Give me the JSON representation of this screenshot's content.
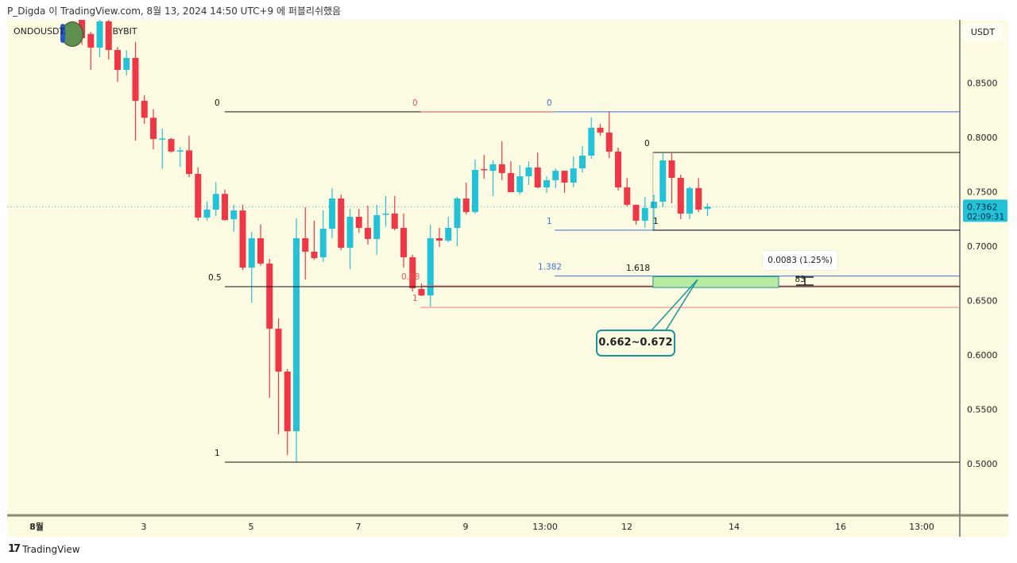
{
  "header": {
    "published_text": "P_Digda 이 TradingView.com, 8월 13, 2024 14:50 UTC+9 에 퍼블리쉬했음"
  },
  "symbol": {
    "label": "ONDOUSDT.P, 4h, BYBIT",
    "visible_text_left": "ONDOUSDT.",
    "visible_text_right": "BYBIT"
  },
  "price_axis": {
    "currency": "USDT",
    "current_price": "0.7362",
    "countdown": "02:09:31",
    "current_price_color": "#22c3d9"
  },
  "footer": {
    "brand": "TradingView",
    "logo_glyph": "17"
  },
  "colors": {
    "up": "#22c3d9",
    "down": "#f23645",
    "background": "#fdfbe2",
    "fib_black": "#131313",
    "fib_blue": "#3f6fd8",
    "fib_red": "#f08080",
    "zone_fill": "#b8eaa0",
    "callout_border": "#17979b"
  },
  "annotations": {
    "measure_label": "0.0083 (1.25%) 83",
    "zone_callout": "0.662~0.672",
    "zone_low": 0.662,
    "zone_high": 0.672
  },
  "chart_data": {
    "type": "candlestick",
    "timeframe": "4h",
    "ylim": [
      0.4533,
      0.908
    ],
    "y_ticks": [
      "0.8500",
      "0.8000",
      "0.7500",
      "0.7000",
      "0.6500",
      "0.6000",
      "0.5500",
      "0.5000"
    ],
    "y_tick_values": [
      0.85,
      0.8,
      0.75,
      0.7,
      0.65,
      0.6,
      0.55,
      0.5
    ],
    "x_ticks": [
      "8월",
      "3",
      "5",
      "7",
      "9",
      "13:00",
      "12",
      "14",
      "16",
      "13:00"
    ],
    "grid": false,
    "ohlc": [
      [
        0.915,
        0.92,
        0.885,
        0.891
      ],
      [
        0.895,
        0.897,
        0.862,
        0.8825
      ],
      [
        0.8825,
        0.912,
        0.8737,
        0.9066
      ],
      [
        0.9066,
        0.91,
        0.8715,
        0.8803
      ],
      [
        0.8803,
        0.883,
        0.851,
        0.862
      ],
      [
        0.862,
        0.88,
        0.857,
        0.873
      ],
      [
        0.873,
        0.8876,
        0.797,
        0.8336
      ],
      [
        0.8336,
        0.8387,
        0.8124,
        0.818
      ],
      [
        0.818,
        0.826,
        0.789,
        0.7985
      ],
      [
        0.7985,
        0.808,
        0.771,
        0.799
      ],
      [
        0.7985,
        0.7995,
        0.786,
        0.787
      ],
      [
        0.7876,
        0.791,
        0.773,
        0.788
      ],
      [
        0.788,
        0.8015,
        0.7635,
        0.7664
      ],
      [
        0.7664,
        0.7723,
        0.7234,
        0.7263
      ],
      [
        0.7263,
        0.741,
        0.7234,
        0.7336
      ],
      [
        0.7336,
        0.759,
        0.7277,
        0.748
      ],
      [
        0.748,
        0.752,
        0.7234,
        0.724
      ],
      [
        0.7248,
        0.738,
        0.713,
        0.7328
      ],
      [
        0.7328,
        0.738,
        0.678,
        0.6803
      ],
      [
        0.6803,
        0.713,
        0.648,
        0.7073
      ],
      [
        0.7073,
        0.72,
        0.682,
        0.684
      ],
      [
        0.684,
        0.6883,
        0.5606,
        0.6241
      ],
      [
        0.6241,
        0.6336,
        0.527,
        0.5847
      ],
      [
        0.5847,
        0.587,
        0.508,
        0.5299
      ],
      [
        0.5299,
        0.7255,
        0.5015,
        0.7073
      ],
      [
        0.7073,
        0.7358,
        0.6693,
        0.6949
      ],
      [
        0.6949,
        0.7234,
        0.6876,
        0.689
      ],
      [
        0.6898,
        0.7328,
        0.6854,
        0.716
      ],
      [
        0.716,
        0.7533,
        0.7073,
        0.7438
      ],
      [
        0.7438,
        0.7474,
        0.6963,
        0.6985
      ],
      [
        0.6985,
        0.7343,
        0.6788,
        0.727
      ],
      [
        0.727,
        0.7343,
        0.7124,
        0.7168
      ],
      [
        0.7168,
        0.7372,
        0.7015,
        0.7066
      ],
      [
        0.7066,
        0.738,
        0.692,
        0.7285
      ],
      [
        0.7292,
        0.746,
        0.718,
        0.7299
      ],
      [
        0.73,
        0.746,
        0.7146,
        0.716
      ],
      [
        0.7168,
        0.73,
        0.6803,
        0.6898
      ],
      [
        0.6898,
        0.692,
        0.6584,
        0.6613
      ],
      [
        0.6606,
        0.6657,
        0.654,
        0.6547
      ],
      [
        0.6547,
        0.7197,
        0.6445,
        0.7073
      ],
      [
        0.7073,
        0.7168,
        0.6993,
        0.7051
      ],
      [
        0.7051,
        0.727,
        0.7036,
        0.7168
      ],
      [
        0.7168,
        0.7453,
        0.7,
        0.7438
      ],
      [
        0.7438,
        0.7584,
        0.7292,
        0.7314
      ],
      [
        0.7314,
        0.7796,
        0.73,
        0.7701
      ],
      [
        0.7708,
        0.7839,
        0.762,
        0.7701
      ],
      [
        0.7693,
        0.7788,
        0.746,
        0.7752
      ],
      [
        0.7752,
        0.7964,
        0.7606,
        0.7672
      ],
      [
        0.7672,
        0.7781,
        0.7496,
        0.7496
      ],
      [
        0.7496,
        0.7745,
        0.7474,
        0.7642
      ],
      [
        0.7642,
        0.7781,
        0.7562,
        0.7723
      ],
      [
        0.7723,
        0.7861,
        0.7533,
        0.754
      ],
      [
        0.754,
        0.7642,
        0.7489,
        0.7606
      ],
      [
        0.7606,
        0.7715,
        0.7533,
        0.7693
      ],
      [
        0.7693,
        0.7693,
        0.7489,
        0.7584
      ],
      [
        0.7584,
        0.7825,
        0.754,
        0.7715
      ],
      [
        0.7715,
        0.792,
        0.7679,
        0.7832
      ],
      [
        0.7832,
        0.8182,
        0.7803,
        0.8088
      ],
      [
        0.8088,
        0.8124,
        0.8015,
        0.8044
      ],
      [
        0.8044,
        0.8241,
        0.781,
        0.7869
      ],
      [
        0.7869,
        0.7905,
        0.7511,
        0.754
      ],
      [
        0.754,
        0.7628,
        0.7365,
        0.738
      ],
      [
        0.738,
        0.738,
        0.7197,
        0.7234
      ],
      [
        0.7234,
        0.7453,
        0.7168,
        0.735
      ],
      [
        0.735,
        0.7474,
        0.714,
        0.7409
      ],
      [
        0.7409,
        0.7854,
        0.7358,
        0.7788
      ],
      [
        0.7788,
        0.7854,
        0.7394,
        0.7628
      ],
      [
        0.7628,
        0.7657,
        0.7248,
        0.7299
      ],
      [
        0.7299,
        0.7547,
        0.7248,
        0.7533
      ],
      [
        0.7533,
        0.7628,
        0.7314,
        0.7336
      ],
      [
        0.7343,
        0.7394,
        0.7277,
        0.7362
      ]
    ],
    "fib_retracements": [
      {
        "color": "black",
        "levels": [
          {
            "label": "0",
            "price": 0.8234
          },
          {
            "label": "0.5",
            "price": 0.6628
          },
          {
            "label": "1",
            "price": 0.5015
          }
        ]
      },
      {
        "color": "red",
        "levels": [
          {
            "label": "0",
            "price": 0.8234
          },
          {
            "label": "0.88",
            "price": 0.6635
          },
          {
            "label": "1",
            "price": 0.6437
          }
        ]
      },
      {
        "color": "blue",
        "levels": [
          {
            "label": "0",
            "price": 0.8234
          },
          {
            "label": "1",
            "price": 0.7147
          },
          {
            "label": "1.382",
            "price": 0.6725
          }
        ]
      },
      {
        "color": "black",
        "levels": [
          {
            "label": "0",
            "price": 0.7861
          },
          {
            "label": "1",
            "price": 0.7147
          },
          {
            "label": "1.618",
            "price": 0.6717
          }
        ]
      }
    ]
  }
}
